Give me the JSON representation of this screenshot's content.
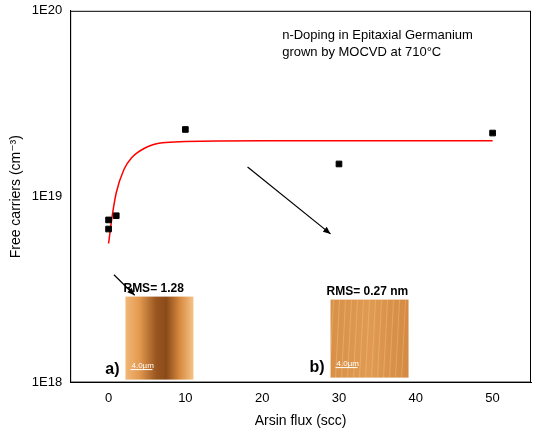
{
  "chart_data": {
    "type": "scatter",
    "annotation": [
      "n-Doping in Epitaxial Germanium",
      "grown by MOCVD at 710°C"
    ],
    "x_label": "Arsin flux (scc)",
    "y_label": "Free carriers (cm⁻³)",
    "log": "y",
    "grid": false,
    "xlim": [
      -5,
      55
    ],
    "xticks": [
      0,
      10,
      20,
      30,
      40,
      50
    ],
    "ylim": [
      1e+18,
      1e+20
    ],
    "yticks": [
      {
        "value": 1e+18,
        "label": "1E18"
      },
      {
        "value": 1e+19,
        "label": "1E19"
      },
      {
        "value": 1e+20,
        "label": "1E20"
      }
    ],
    "series": [
      {
        "type": "scatter",
        "color": "#000000",
        "marker": "square",
        "x": [
          0,
          0,
          1,
          10,
          30,
          50
        ],
        "values": [
          6.7e+18,
          7.5e+18,
          7.9e+18,
          2.3e+19,
          1.5e+19,
          2.2e+19
        ]
      },
      {
        "type": "line",
        "color": "#ff0000",
        "line_style": "solid",
        "x": [
          0,
          0.5,
          1,
          2,
          3,
          5,
          7,
          10,
          20,
          35,
          50
        ],
        "values": [
          5.6e+18,
          8e+18,
          1.05e+19,
          1.4e+19,
          1.62e+19,
          1.85e+19,
          1.95e+19,
          1.98e+19,
          2e+19,
          2e+19,
          2e+19
        ]
      }
    ],
    "insets": [
      {
        "label": "a)",
        "title": "RMS= 1.28",
        "scale_bar": "4.0µm"
      },
      {
        "label": "b)",
        "title": "RMS= 0.27 nm",
        "scale_bar": "4.0µm"
      }
    ]
  }
}
